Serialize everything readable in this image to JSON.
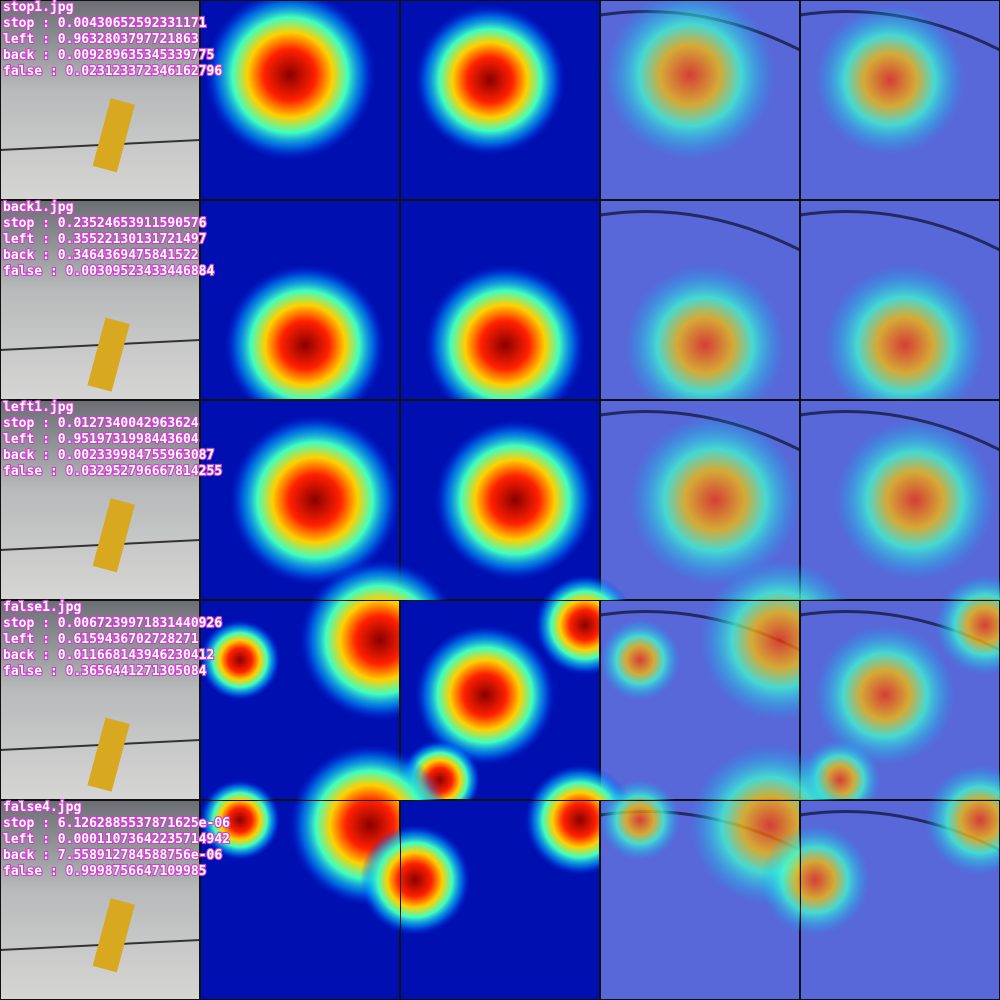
{
  "rows": [
    {
      "filename": "stop1.jpg",
      "lines": [
        "stop :  0.00430652592331171",
        "left :  0.9632803797721863",
        "back :  0.009289635345339775",
        "false :  0.023123372346162796"
      ]
    },
    {
      "filename": "back1.jpg",
      "lines": [
        "stop :  0.23524653911590576",
        "left :  0.35522130131721497",
        "back :  0.3464369475841522",
        "false :  0.00309523433446884"
      ]
    },
    {
      "filename": "left1.jpg",
      "lines": [
        "stop :  0.0127340042963624",
        "left :  0.9519731998443604",
        "back :  0.002339984755963087",
        "false :  0.032952796667814255"
      ]
    },
    {
      "filename": "false1.jpg",
      "lines": [
        "stop :  0.0067239971831440926",
        "left :  0.6159436702728271",
        "back :  0.011668143946230412",
        "false :  0.3656441271305084"
      ]
    },
    {
      "filename": "false4.jpg",
      "lines": [
        "stop :  6.1262885537871625e-06",
        "left :  0.00011073642235714942",
        "back :  7.558912784588756e-06",
        "false :  0.9998756647109985"
      ]
    }
  ]
}
